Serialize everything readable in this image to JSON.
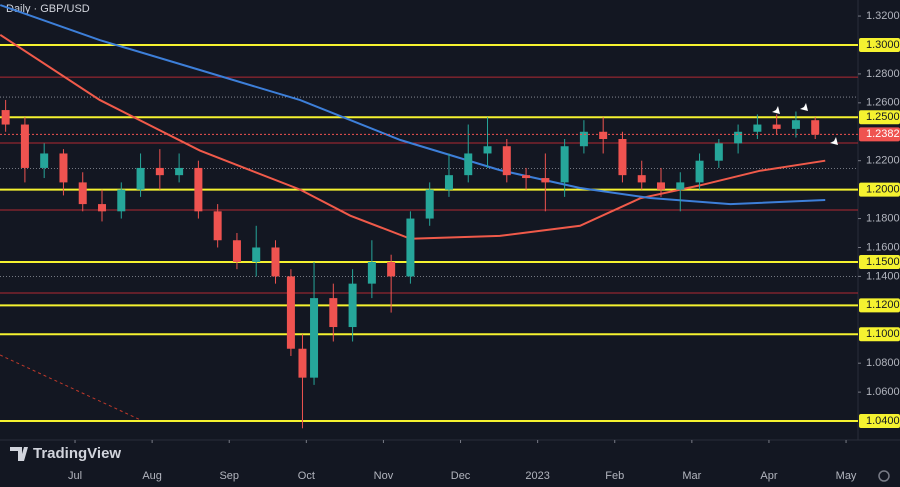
{
  "chart_data": {
    "type": "candlestick",
    "title": "Daily · GBP/USD",
    "brand": "TradingView",
    "up_color": "#26a69a",
    "down_color": "#ef5350",
    "x": [
      6.1,
      6.35,
      6.6,
      6.85,
      7.1,
      7.35,
      7.6,
      7.85,
      8.1,
      8.35,
      8.6,
      8.85,
      9.1,
      9.35,
      9.6,
      9.8,
      9.95,
      10.1,
      10.35,
      10.6,
      10.85,
      11.1,
      11.35,
      11.6,
      11.85,
      12.1,
      12.35,
      12.6,
      12.85,
      13.1,
      13.35,
      13.6,
      13.85,
      14.1,
      14.35,
      14.6,
      14.85,
      15.1,
      15.35,
      15.6,
      15.85,
      16.1,
      16.35,
      16.6
    ],
    "open": [
      1.255,
      1.245,
      1.215,
      1.225,
      1.205,
      1.19,
      1.185,
      1.2,
      1.215,
      1.21,
      1.215,
      1.185,
      1.165,
      1.15,
      1.16,
      1.14,
      1.09,
      1.07,
      1.125,
      1.105,
      1.135,
      1.15,
      1.14,
      1.18,
      1.2,
      1.21,
      1.225,
      1.23,
      1.21,
      1.208,
      1.205,
      1.23,
      1.24,
      1.235,
      1.21,
      1.205,
      1.2,
      1.205,
      1.22,
      1.232,
      1.24,
      1.245,
      1.242,
      1.248
    ],
    "high": [
      1.262,
      1.25,
      1.232,
      1.228,
      1.212,
      1.2,
      1.205,
      1.225,
      1.228,
      1.225,
      1.22,
      1.19,
      1.17,
      1.175,
      1.165,
      1.145,
      1.1,
      1.15,
      1.135,
      1.145,
      1.165,
      1.155,
      1.185,
      1.205,
      1.225,
      1.245,
      1.25,
      1.235,
      1.215,
      1.225,
      1.235,
      1.248,
      1.25,
      1.24,
      1.22,
      1.215,
      1.212,
      1.225,
      1.235,
      1.245,
      1.252,
      1.252,
      1.254,
      1.25
    ],
    "low": [
      1.24,
      1.205,
      1.208,
      1.196,
      1.185,
      1.178,
      1.18,
      1.195,
      1.2,
      1.205,
      1.18,
      1.16,
      1.145,
      1.14,
      1.135,
      1.085,
      1.035,
      1.065,
      1.095,
      1.095,
      1.125,
      1.115,
      1.135,
      1.175,
      1.195,
      1.205,
      1.215,
      1.205,
      1.2,
      1.185,
      1.195,
      1.225,
      1.225,
      1.205,
      1.2,
      1.195,
      1.185,
      1.2,
      1.215,
      1.225,
      1.235,
      1.238,
      1.236,
      1.235
    ],
    "close": [
      1.245,
      1.215,
      1.225,
      1.205,
      1.19,
      1.185,
      1.2,
      1.215,
      1.21,
      1.215,
      1.185,
      1.165,
      1.15,
      1.16,
      1.14,
      1.09,
      1.07,
      1.125,
      1.105,
      1.135,
      1.15,
      1.14,
      1.18,
      1.2,
      1.21,
      1.225,
      1.23,
      1.21,
      1.208,
      1.205,
      1.23,
      1.24,
      1.235,
      1.21,
      1.205,
      1.2,
      1.205,
      1.22,
      1.232,
      1.24,
      1.245,
      1.242,
      1.248,
      1.238
    ],
    "series": [
      {
        "color": "#f05a4a",
        "x": [
          6.03,
          7.32,
          8.62,
          9.92,
          10.57,
          11.35,
          12.51,
          13.55,
          14.33,
          15.11,
          15.88,
          16.73
        ],
        "values": [
          1.307,
          1.262,
          1.227,
          1.2,
          1.182,
          1.166,
          1.168,
          1.175,
          1.194,
          1.203,
          1.213,
          1.22
        ]
      },
      {
        "color": "#3d7fd9",
        "x": [
          6.03,
          7.32,
          8.62,
          9.92,
          11.22,
          12.51,
          13.55,
          14.46,
          15.5,
          16.73
        ],
        "values": [
          1.3276,
          1.3034,
          1.2827,
          1.2619,
          1.2343,
          1.2135,
          1.2011,
          1.1942,
          1.19,
          1.1928
        ]
      }
    ],
    "xlim": [
      6.027,
      17.155
    ],
    "ylim": [
      1.0269,
      1.3311
    ],
    "xticks": [
      {
        "value": 7,
        "label": "Jul"
      },
      {
        "value": 8,
        "label": "Aug"
      },
      {
        "value": 9,
        "label": "Sep"
      },
      {
        "value": 10,
        "label": "Oct"
      },
      {
        "value": 11,
        "label": "Nov"
      },
      {
        "value": 12,
        "label": "Dec"
      },
      {
        "value": 13,
        "label": "2023"
      },
      {
        "value": 14,
        "label": "Feb"
      },
      {
        "value": 15,
        "label": "Mar"
      },
      {
        "value": 16,
        "label": "Apr"
      },
      {
        "value": 17,
        "label": "May"
      }
    ],
    "yticks": [
      {
        "value": 1.32,
        "label": "1.32000"
      },
      {
        "value": 1.28,
        "label": "1.28000"
      },
      {
        "value": 1.26,
        "label": "1.26000"
      },
      {
        "value": 1.22,
        "label": "1.22000"
      },
      {
        "value": 1.18,
        "label": "1.18000"
      },
      {
        "value": 1.16,
        "label": "1.16000"
      },
      {
        "value": 1.14,
        "label": "1.14000"
      },
      {
        "value": 1.08,
        "label": "1.08000"
      },
      {
        "value": 1.06,
        "label": "1.06000"
      }
    ],
    "key_levels": [
      {
        "value": 1.3,
        "label": "1.30000"
      },
      {
        "value": 1.25,
        "label": "1.25000"
      },
      {
        "value": 1.2,
        "label": "1.20000"
      },
      {
        "value": 1.15,
        "label": "1.15000"
      },
      {
        "value": 1.12,
        "label": "1.12000"
      },
      {
        "value": 1.1,
        "label": "1.10000"
      },
      {
        "value": 1.04,
        "label": "1.04000"
      }
    ],
    "red_levels": [
      1.2778,
      1.2322,
      1.1859,
      1.1285
    ],
    "dotted_levels": [
      1.264,
      1.2145,
      1.14
    ],
    "last_price": {
      "value": 1.23823,
      "label": "1.23823"
    }
  }
}
